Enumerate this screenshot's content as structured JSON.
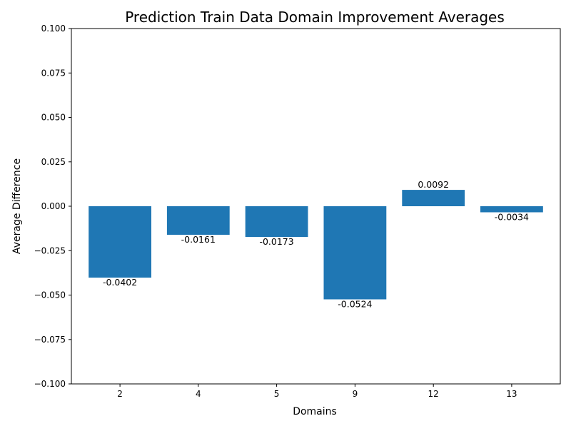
{
  "chart_data": {
    "type": "bar",
    "title": "Prediction Train Data Domain Improvement Averages",
    "xlabel": "Domains",
    "ylabel": "Average Difference",
    "categories": [
      "2",
      "4",
      "5",
      "9",
      "12",
      "13"
    ],
    "values": [
      -0.0402,
      -0.0161,
      -0.0173,
      -0.0524,
      0.0092,
      -0.0034
    ],
    "data_labels": [
      "-0.0402",
      "-0.0161",
      "-0.0173",
      "-0.0524",
      "0.0092",
      "-0.0034"
    ],
    "ylim": [
      -0.1,
      0.1
    ],
    "yticks": [
      -0.1,
      -0.075,
      -0.05,
      -0.025,
      0.0,
      0.025,
      0.05,
      0.075,
      0.1
    ],
    "ytick_labels": [
      "−0.100",
      "−0.075",
      "−0.050",
      "−0.025",
      "0.000",
      "0.025",
      "0.050",
      "0.075",
      "0.100"
    ],
    "grid": false,
    "bar_color": "#1f77b4"
  }
}
